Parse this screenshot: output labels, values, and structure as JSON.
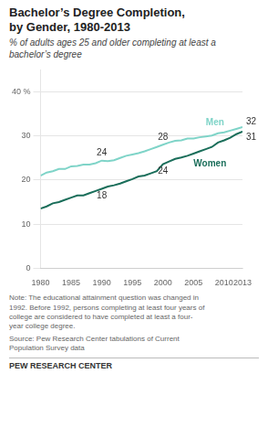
{
  "chart_data": {
    "type": "line",
    "title": "Bachelor’s Degree Completion,\nby Gender, 1980-2013",
    "subtitle": "% of adults ages 25 and older completing at least a\nbachelor’s degree",
    "note": "Note: The educational attainment question was changed in\n1992. Before 1992, persons completing at least four years of\ncollege are considered to have completed at least a four-\nyear college degree.",
    "source": "Source: Pew Research Center tabulations of Current\nPopulation Survey data",
    "footer": "PEW RESEARCH CENTER",
    "x": [
      1980,
      1981,
      1982,
      1983,
      1984,
      1985,
      1986,
      1987,
      1988,
      1989,
      1990,
      1991,
      1992,
      1993,
      1994,
      1995,
      1996,
      1997,
      1998,
      1999,
      2000,
      2001,
      2002,
      2003,
      2004,
      2005,
      2006,
      2007,
      2008,
      2009,
      2010,
      2011,
      2012,
      2013
    ],
    "series": [
      {
        "name": "Men",
        "color": "#7fd4c8",
        "values": [
          21.0,
          21.7,
          22.0,
          22.5,
          22.5,
          23.1,
          23.2,
          23.5,
          23.5,
          23.8,
          24.4,
          24.3,
          24.5,
          25.0,
          25.5,
          25.8,
          26.1,
          26.5,
          27.0,
          27.5,
          28.0,
          28.5,
          28.9,
          29.0,
          29.4,
          29.4,
          29.7,
          29.9,
          30.1,
          30.6,
          30.8,
          31.2,
          31.6,
          32.0
        ]
      },
      {
        "name": "Women",
        "color": "#1a6e5a",
        "values": [
          13.5,
          14.0,
          14.7,
          15.0,
          15.5,
          16.0,
          16.5,
          16.5,
          17.0,
          17.5,
          18.0,
          18.5,
          18.8,
          19.2,
          19.7,
          20.2,
          20.8,
          21.0,
          21.5,
          22.0,
          23.6,
          24.2,
          24.8,
          25.1,
          25.5,
          26.0,
          26.5,
          27.0,
          27.5,
          28.5,
          29.0,
          29.6,
          30.4,
          31.0
        ]
      }
    ],
    "annotations": [
      {
        "text": "24",
        "x": 1990,
        "y": 24.4,
        "series": "Men"
      },
      {
        "text": "28",
        "x": 2000,
        "y": 28.0,
        "series": "Men"
      },
      {
        "text": "32",
        "x": 2013,
        "y": 32.0,
        "series": "Men"
      },
      {
        "text": "18",
        "x": 1990,
        "y": 18.0,
        "series": "Women"
      },
      {
        "text": "24",
        "x": 2000,
        "y": 23.6,
        "series": "Women"
      },
      {
        "text": "31",
        "x": 2013,
        "y": 31.0,
        "series": "Women"
      }
    ],
    "xlim": [
      1980,
      2013
    ],
    "xticks": [
      1980,
      1985,
      1990,
      1995,
      2000,
      2005,
      2010,
      2013
    ],
    "ylim": [
      0,
      45
    ],
    "yticks": [
      0,
      10,
      20,
      30,
      {
        "value": 40,
        "label": "40 %"
      }
    ],
    "grid": "y"
  }
}
